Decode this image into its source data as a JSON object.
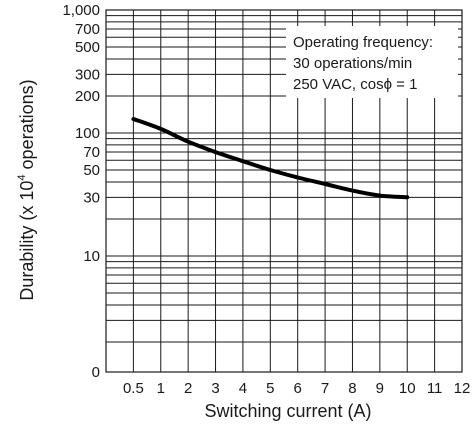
{
  "chart_data": {
    "type": "line",
    "xlabel": "Switching current (A)",
    "ylabel_main": "Durability  (x 10",
    "ylabel_sup": "4",
    "ylabel_tail": " operations)",
    "x_tick_labels": [
      "0.5",
      "1",
      "2",
      "3",
      "4",
      "5",
      "6",
      "7",
      "8",
      "9",
      "10",
      "11",
      "12"
    ],
    "x_tick_values": [
      0.5,
      1,
      2,
      3,
      4,
      5,
      6,
      7,
      8,
      9,
      10,
      11,
      12
    ],
    "y_tick_labels": [
      "1,000",
      "700",
      "500",
      "300",
      "200",
      "100",
      "70",
      "50",
      "30",
      "10",
      "0"
    ],
    "y_tick_values": [
      1000,
      700,
      500,
      300,
      200,
      100,
      70,
      50,
      30,
      10,
      0
    ],
    "y_scale": "log",
    "xlim": [
      0,
      12
    ],
    "grid": true,
    "annotation": [
      "Operating frequency:",
      "30 operations/min",
      "250 VAC, cosϕ = 1"
    ],
    "annotation_position": "top-right",
    "series": [
      {
        "x": [
          0.5,
          1,
          2,
          3,
          4,
          5,
          6,
          7,
          8,
          9,
          10
        ],
        "y": [
          130,
          108,
          85,
          70,
          59,
          50,
          43.5,
          38.5,
          34,
          31,
          30
        ]
      }
    ]
  }
}
